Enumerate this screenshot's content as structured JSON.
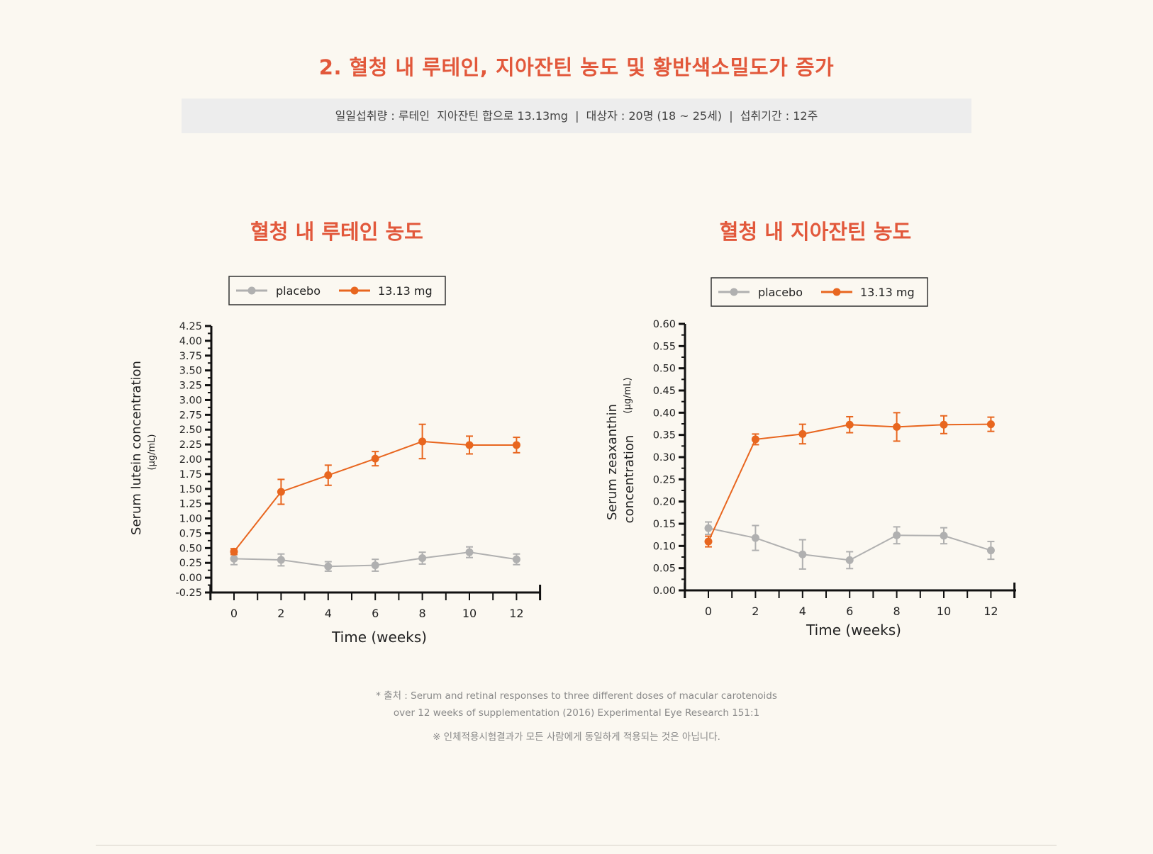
{
  "heading": "2. 혈청 내 루테인, 지아잔틴 농도 및 황반색소밀도가 증가",
  "info_bar": "일일섭취량 : 루테인  지아잔틴 합으로 13.13mg  |  대상자 : 20명 (18 ~ 25세)  |  섭취기간 : 12주",
  "colors": {
    "accent": "#e2583b",
    "placebo": "#b0b0b0",
    "dose": "#e8661f"
  },
  "chart_data": [
    {
      "type": "line",
      "title": "혈청 내 루테인 농도",
      "ylabel": "Serum lutein concentration",
      "yunit": "(μg/mL)",
      "xlabel": "Time (weeks)",
      "legend_position": "top",
      "ylim": [
        -0.25,
        4.25
      ],
      "yticks": [
        "4.25",
        "4.00",
        "3.75",
        "3.50",
        "3.25",
        "3.00",
        "2.75",
        "2.50",
        "2.25",
        "2.00",
        "1.75",
        "1.50",
        "1.25",
        "1.00",
        "0.75",
        "0.50",
        "0.25",
        "0.00",
        "-0.25"
      ],
      "x": [
        0,
        2,
        4,
        6,
        8,
        10,
        12
      ],
      "series": [
        {
          "name": "placebo",
          "values": [
            0.32,
            0.3,
            0.19,
            0.21,
            0.33,
            0.43,
            0.31
          ],
          "errors": [
            0.1,
            0.1,
            0.08,
            0.1,
            0.1,
            0.09,
            0.09
          ]
        },
        {
          "name": "13.13 mg",
          "values": [
            0.44,
            1.45,
            1.73,
            2.01,
            2.3,
            2.24,
            2.24
          ],
          "errors": [
            0.05,
            0.21,
            0.17,
            0.12,
            0.29,
            0.15,
            0.13
          ]
        }
      ]
    },
    {
      "type": "line",
      "title": "혈청 내 지아잔틴 농도",
      "ylabel": "Serum zeaxanthin",
      "ylabel2": "concentration",
      "yunit": "(μg/mL)",
      "xlabel": "Time (weeks)",
      "legend_position": "top",
      "ylim": [
        0.0,
        0.6
      ],
      "yticks": [
        "0.60",
        "0.55",
        "0.50",
        "0.45",
        "0.40",
        "0.35",
        "0.30",
        "0.25",
        "0.20",
        "0.15",
        "0.10",
        "0.05",
        "0.00"
      ],
      "x": [
        0,
        2,
        4,
        6,
        8,
        10,
        12
      ],
      "series": [
        {
          "name": "placebo",
          "values": [
            0.14,
            0.118,
            0.081,
            0.068,
            0.124,
            0.123,
            0.09
          ],
          "errors": [
            0.014,
            0.028,
            0.033,
            0.019,
            0.019,
            0.018,
            0.02
          ]
        },
        {
          "name": "13.13 mg",
          "values": [
            0.11,
            0.34,
            0.352,
            0.373,
            0.368,
            0.373,
            0.374
          ],
          "errors": [
            0.012,
            0.012,
            0.022,
            0.018,
            0.032,
            0.02,
            0.016
          ]
        }
      ]
    }
  ],
  "source_line1": "* 출처 : Serum and retinal responses to three different doses of macular carotenoids",
  "source_line2": "over 12 weeks of supplementation (2016) Experimental Eye Research 151:1",
  "notice": "※ 인체적용시험결과가 모든 사람에게 동일하게 적용되는 것은 아닙니다."
}
